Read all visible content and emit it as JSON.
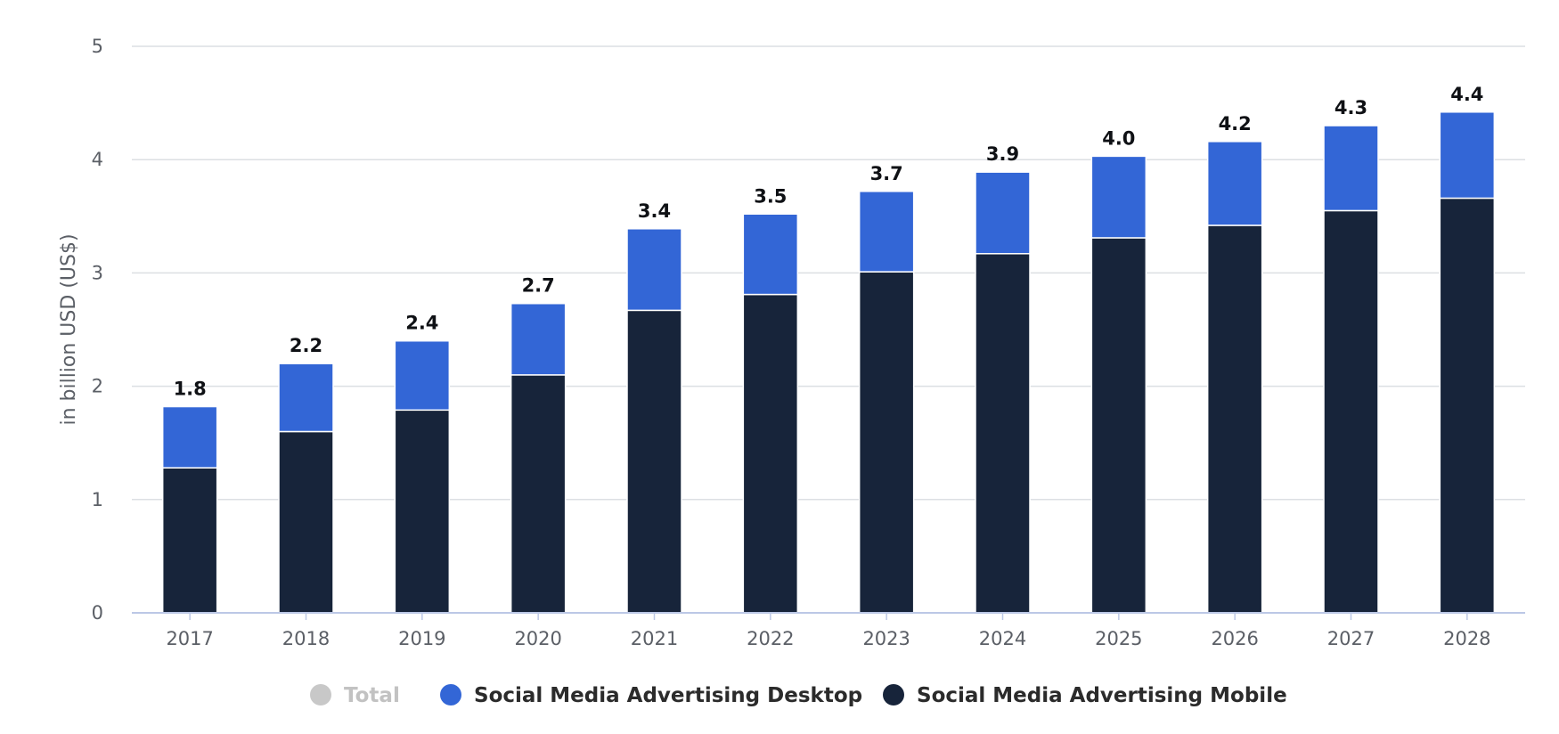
{
  "chart_data": {
    "type": "bar",
    "stacked": true,
    "categories": [
      "2017",
      "2018",
      "2019",
      "2020",
      "2021",
      "2022",
      "2023",
      "2024",
      "2025",
      "2026",
      "2027",
      "2028"
    ],
    "series": [
      {
        "name": "Social Media Advertising Mobile",
        "color": "#17243a",
        "values": [
          1.28,
          1.6,
          1.79,
          2.1,
          2.67,
          2.81,
          3.01,
          3.17,
          3.31,
          3.42,
          3.55,
          3.66
        ]
      },
      {
        "name": "Social Media Advertising Desktop",
        "color": "#3366d6",
        "values": [
          0.54,
          0.6,
          0.61,
          0.63,
          0.72,
          0.71,
          0.71,
          0.72,
          0.72,
          0.74,
          0.75,
          0.76
        ]
      }
    ],
    "totals": [
      "1.8",
      "2.2",
      "2.4",
      "2.7",
      "3.4",
      "3.5",
      "3.7",
      "3.9",
      "4.0",
      "4.2",
      "4.3",
      "4.4"
    ],
    "ylabel": "in billion USD (US$)",
    "xlabel": "",
    "ylim": [
      0,
      5
    ],
    "yticks": [
      "0",
      "1",
      "2",
      "3",
      "4",
      "5"
    ],
    "grid": true,
    "legend": {
      "placement": "bottom-center",
      "items": [
        {
          "label": "Total",
          "color": "#c8c8c8",
          "active": false
        },
        {
          "label": "Social Media Advertising Desktop",
          "color": "#3366d6",
          "active": true
        },
        {
          "label": "Social Media Advertising Mobile",
          "color": "#17243a",
          "active": true
        }
      ]
    }
  },
  "colors": {
    "grid": "#dcdfe3",
    "axis": "#bcc8e6",
    "legend_inactive_text": "#c2c2c2",
    "legend_active_text": "#2b2b2b"
  }
}
